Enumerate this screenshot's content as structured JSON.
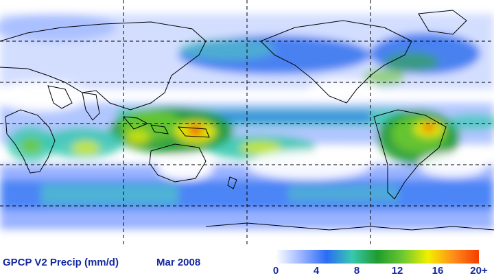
{
  "map": {
    "title": "GPCP V2 Precip (mm/d)",
    "period": "Mar 2008",
    "projection": "equirectangular, Pacific-centered",
    "background_color": "#ffffff",
    "coastline_color": "#000000",
    "gridline_style": "dashed black",
    "features": [
      "Intertropical convergence zone rain band across Pacific and Atlantic",
      "Heavy precipitation over Maritime Continent and New Guinea",
      "Heavy precipitation over northern South America / Amazon mouth",
      "Storm tracks in mid-latitude North Pacific and North Atlantic",
      "Southern Ocean storm track"
    ]
  },
  "colorbar": {
    "ticks": [
      "0",
      "4",
      "8",
      "12",
      "16",
      "20+"
    ],
    "min": 0,
    "max": 20,
    "stops": [
      "#ffffff",
      "#9ab4ff",
      "#2a6cf5",
      "#38c8b0",
      "#1f9c2e",
      "#6cc830",
      "#f2f000",
      "#ff8c1a",
      "#f53d00"
    ]
  }
}
